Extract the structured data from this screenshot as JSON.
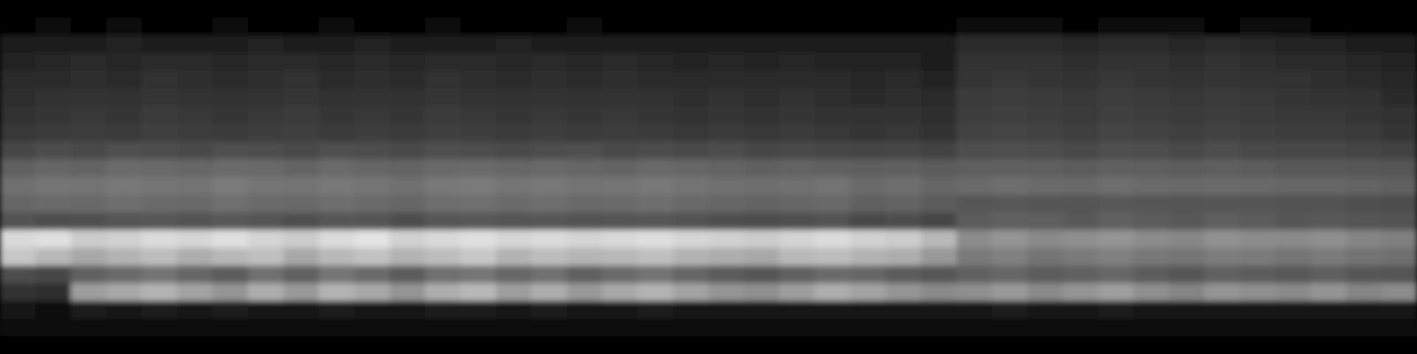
{
  "chart_data": {
    "type": "heatmap",
    "tick_labels": false,
    "color": "#ffffff",
    "zlim": [
      0,
      100
    ],
    "cells": [
      [
        0,
        0,
        0,
        0,
        0,
        0,
        0,
        0,
        0,
        0,
        0,
        0,
        0,
        0,
        0,
        0,
        0,
        0,
        0,
        0,
        0,
        0,
        0,
        0,
        0,
        0,
        0,
        0,
        0,
        0,
        0,
        0,
        0,
        0,
        0,
        0,
        0,
        0,
        0,
        0
      ],
      [
        2,
        3,
        2,
        3,
        2,
        2,
        3,
        2,
        2,
        3,
        2,
        2,
        3,
        2,
        2,
        2,
        3,
        2,
        2,
        2,
        2,
        2,
        2,
        2,
        2,
        2,
        2,
        3,
        3,
        3,
        2,
        3,
        3,
        3,
        2,
        3,
        3,
        2,
        2,
        2
      ],
      [
        10,
        12,
        11,
        13,
        12,
        11,
        12,
        13,
        11,
        12,
        13,
        12,
        11,
        12,
        13,
        12,
        11,
        12,
        12,
        11,
        11,
        10,
        11,
        12,
        10,
        11,
        10,
        16,
        17,
        16,
        15,
        17,
        16,
        15,
        16,
        15,
        14,
        13,
        12,
        10
      ],
      [
        14,
        15,
        16,
        15,
        17,
        16,
        15,
        16,
        17,
        15,
        16,
        15,
        17,
        16,
        15,
        16,
        15,
        16,
        15,
        14,
        15,
        14,
        15,
        14,
        13,
        14,
        12,
        19,
        20,
        19,
        18,
        20,
        19,
        18,
        19,
        18,
        17,
        16,
        15,
        13
      ],
      [
        16,
        17,
        18,
        17,
        19,
        18,
        17,
        18,
        19,
        17,
        18,
        17,
        19,
        18,
        17,
        18,
        17,
        18,
        17,
        16,
        17,
        16,
        17,
        16,
        15,
        16,
        14,
        21,
        22,
        21,
        20,
        22,
        21,
        20,
        21,
        20,
        19,
        18,
        17,
        15
      ],
      [
        18,
        19,
        20,
        19,
        21,
        20,
        19,
        20,
        21,
        19,
        20,
        19,
        21,
        20,
        19,
        20,
        19,
        20,
        19,
        18,
        19,
        18,
        19,
        18,
        17,
        18,
        16,
        23,
        24,
        23,
        22,
        24,
        23,
        22,
        23,
        22,
        21,
        20,
        19,
        17
      ],
      [
        20,
        21,
        22,
        21,
        23,
        22,
        21,
        22,
        23,
        21,
        22,
        21,
        23,
        22,
        21,
        22,
        21,
        22,
        21,
        20,
        21,
        20,
        21,
        20,
        19,
        20,
        18,
        24,
        25,
        24,
        23,
        25,
        24,
        23,
        24,
        23,
        22,
        22,
        21,
        19
      ],
      [
        22,
        23,
        24,
        23,
        25,
        24,
        23,
        24,
        25,
        23,
        24,
        23,
        25,
        24,
        23,
        24,
        23,
        24,
        23,
        22,
        23,
        22,
        23,
        22,
        21,
        22,
        20,
        26,
        27,
        26,
        25,
        27,
        26,
        25,
        26,
        25,
        24,
        24,
        23,
        21
      ],
      [
        28,
        30,
        29,
        31,
        30,
        29,
        31,
        30,
        29,
        31,
        30,
        29,
        31,
        30,
        29,
        30,
        31,
        29,
        30,
        29,
        30,
        28,
        29,
        28,
        27,
        28,
        26,
        30,
        31,
        30,
        29,
        31,
        30,
        29,
        30,
        29,
        28,
        28,
        27,
        26
      ],
      [
        38,
        40,
        39,
        42,
        41,
        40,
        42,
        41,
        39,
        42,
        40,
        39,
        41,
        42,
        40,
        41,
        40,
        39,
        41,
        40,
        39,
        38,
        39,
        38,
        37,
        38,
        36,
        37,
        38,
        37,
        36,
        38,
        37,
        36,
        37,
        36,
        35,
        35,
        34,
        33
      ],
      [
        44,
        46,
        45,
        47,
        46,
        45,
        48,
        46,
        45,
        47,
        46,
        44,
        47,
        48,
        46,
        47,
        45,
        46,
        47,
        45,
        44,
        43,
        44,
        45,
        42,
        43,
        40,
        42,
        43,
        42,
        41,
        43,
        42,
        41,
        42,
        41,
        40,
        40,
        39,
        38
      ],
      [
        40,
        42,
        41,
        43,
        42,
        41,
        44,
        42,
        41,
        43,
        42,
        40,
        43,
        44,
        42,
        43,
        41,
        42,
        43,
        41,
        40,
        39,
        40,
        41,
        38,
        39,
        36,
        34,
        35,
        34,
        33,
        35,
        34,
        33,
        34,
        33,
        32,
        32,
        31,
        30
      ],
      [
        32,
        30,
        31,
        33,
        34,
        32,
        35,
        33,
        31,
        34,
        33,
        30,
        34,
        35,
        33,
        34,
        32,
        33,
        34,
        32,
        31,
        30,
        31,
        32,
        29,
        30,
        28,
        36,
        38,
        37,
        35,
        38,
        36,
        35,
        37,
        36,
        34,
        35,
        33,
        32
      ],
      [
        85,
        88,
        80,
        82,
        86,
        84,
        88,
        83,
        80,
        86,
        89,
        82,
        85,
        88,
        84,
        86,
        83,
        85,
        87,
        84,
        82,
        80,
        83,
        86,
        82,
        80,
        72,
        55,
        58,
        54,
        56,
        58,
        55,
        53,
        57,
        55,
        54,
        56,
        52,
        50
      ],
      [
        78,
        72,
        66,
        70,
        74,
        68,
        72,
        75,
        66,
        72,
        76,
        70,
        74,
        78,
        70,
        74,
        71,
        72,
        75,
        70,
        68,
        66,
        72,
        74,
        70,
        68,
        60,
        48,
        50,
        46,
        48,
        50,
        47,
        46,
        49,
        48,
        46,
        48,
        45,
        44
      ],
      [
        30,
        28,
        38,
        42,
        45,
        40,
        36,
        44,
        38,
        46,
        42,
        36,
        44,
        46,
        40,
        44,
        38,
        42,
        45,
        40,
        36,
        34,
        38,
        42,
        40,
        36,
        34,
        38,
        40,
        36,
        38,
        40,
        36,
        34,
        38,
        36,
        35,
        37,
        34,
        33
      ],
      [
        20,
        18,
        62,
        66,
        70,
        64,
        58,
        68,
        60,
        70,
        66,
        58,
        68,
        72,
        62,
        68,
        60,
        66,
        70,
        64,
        58,
        56,
        62,
        68,
        64,
        58,
        54,
        56,
        60,
        54,
        58,
        62,
        56,
        52,
        58,
        56,
        54,
        58,
        52,
        55
      ],
      [
        8,
        6,
        10,
        9,
        11,
        8,
        10,
        9,
        8,
        10,
        9,
        8,
        10,
        11,
        9,
        10,
        8,
        9,
        10,
        8,
        8,
        7,
        8,
        9,
        8,
        7,
        7,
        9,
        10,
        8,
        9,
        10,
        8,
        7,
        9,
        8,
        8,
        9,
        7,
        7
      ],
      [
        4,
        3,
        5,
        4,
        5,
        4,
        5,
        4,
        4,
        5,
        4,
        4,
        5,
        5,
        4,
        5,
        4,
        4,
        5,
        4,
        4,
        3,
        4,
        4,
        4,
        3,
        3,
        4,
        5,
        4,
        4,
        5,
        4,
        3,
        4,
        4,
        4,
        4,
        3,
        3
      ],
      [
        0,
        0,
        0,
        0,
        0,
        0,
        0,
        0,
        0,
        0,
        0,
        0,
        0,
        0,
        0,
        0,
        0,
        0,
        0,
        0,
        0,
        0,
        0,
        0,
        0,
        0,
        0,
        0,
        0,
        0,
        0,
        0,
        0,
        0,
        0,
        0,
        0,
        0,
        0,
        0
      ]
    ]
  }
}
